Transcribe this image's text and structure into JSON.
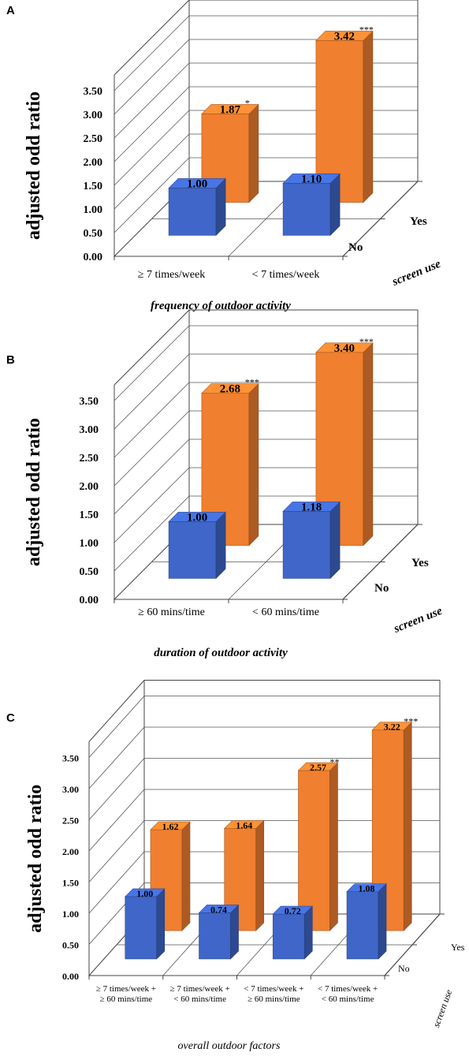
{
  "chart_data": [
    {
      "type": "bar",
      "panel": "A",
      "categories": [
        "≥ 7 times/week",
        "< 7 times/week"
      ],
      "series": [
        {
          "name": "No",
          "values": [
            1.0,
            1.1
          ],
          "labels": [
            "1.00",
            "1.10"
          ],
          "sig": [
            "",
            ""
          ],
          "color": "#3F66C8"
        },
        {
          "name": "Yes",
          "values": [
            1.87,
            3.42
          ],
          "labels": [
            "1.87",
            "3.42"
          ],
          "sig": [
            "*",
            "***"
          ],
          "color": "#F07F2F"
        }
      ],
      "xlabel": "frequency of outdoor activity",
      "ylabel": "adjusted odd ratio",
      "zlabel": "screen use",
      "yticks": [
        "0.00",
        "0.50",
        "1.00",
        "1.50",
        "2.00",
        "2.50",
        "3.00",
        "3.50"
      ],
      "ylim": [
        0,
        3.5
      ]
    },
    {
      "type": "bar",
      "panel": "B",
      "categories": [
        "≥ 60 mins/time",
        "< 60 mins/time"
      ],
      "series": [
        {
          "name": "No",
          "values": [
            1.0,
            1.18
          ],
          "labels": [
            "1.00",
            "1.18"
          ],
          "sig": [
            "",
            ""
          ],
          "color": "#3F66C8"
        },
        {
          "name": "Yes",
          "values": [
            2.68,
            3.4
          ],
          "labels": [
            "2.68",
            "3.40"
          ],
          "sig": [
            "***",
            "***"
          ],
          "color": "#F07F2F"
        }
      ],
      "xlabel": "duration of outdoor activity",
      "ylabel": "adjusted odd ratio",
      "zlabel": "screen use",
      "yticks": [
        "0.00",
        "0.50",
        "1.00",
        "1.50",
        "2.00",
        "2.50",
        "3.00",
        "3.50"
      ],
      "ylim": [
        0,
        3.5
      ]
    },
    {
      "type": "bar",
      "panel": "C",
      "categories": [
        [
          "≥ 7 times/week +",
          "≥ 60 mins/time"
        ],
        [
          "≥ 7 times/week +",
          "< 60 mins/time"
        ],
        [
          "< 7 times/week +",
          "≥ 60 mins/time"
        ],
        [
          "< 7 times/week +",
          "< 60 mins/time"
        ]
      ],
      "series": [
        {
          "name": "No",
          "values": [
            1.0,
            0.74,
            0.72,
            1.08
          ],
          "labels": [
            "1.00",
            "0.74",
            "0.72",
            "1.08"
          ],
          "sig": [
            "",
            "",
            "",
            ""
          ],
          "color": "#3F66C8"
        },
        {
          "name": "Yes",
          "values": [
            1.62,
            1.64,
            2.57,
            3.22
          ],
          "labels": [
            "1.62",
            "1.64",
            "2.57",
            "3.22"
          ],
          "sig": [
            "",
            "",
            "**",
            "***"
          ],
          "color": "#F07F2F"
        }
      ],
      "xlabel": "overall outdoor factors",
      "ylabel": "adjusted odd ratio",
      "zlabel": "screen use",
      "yticks": [
        "0.00",
        "0.50",
        "1.00",
        "1.50",
        "2.00",
        "2.50",
        "3.00",
        "3.50"
      ],
      "ylim": [
        0,
        3.5
      ]
    }
  ]
}
